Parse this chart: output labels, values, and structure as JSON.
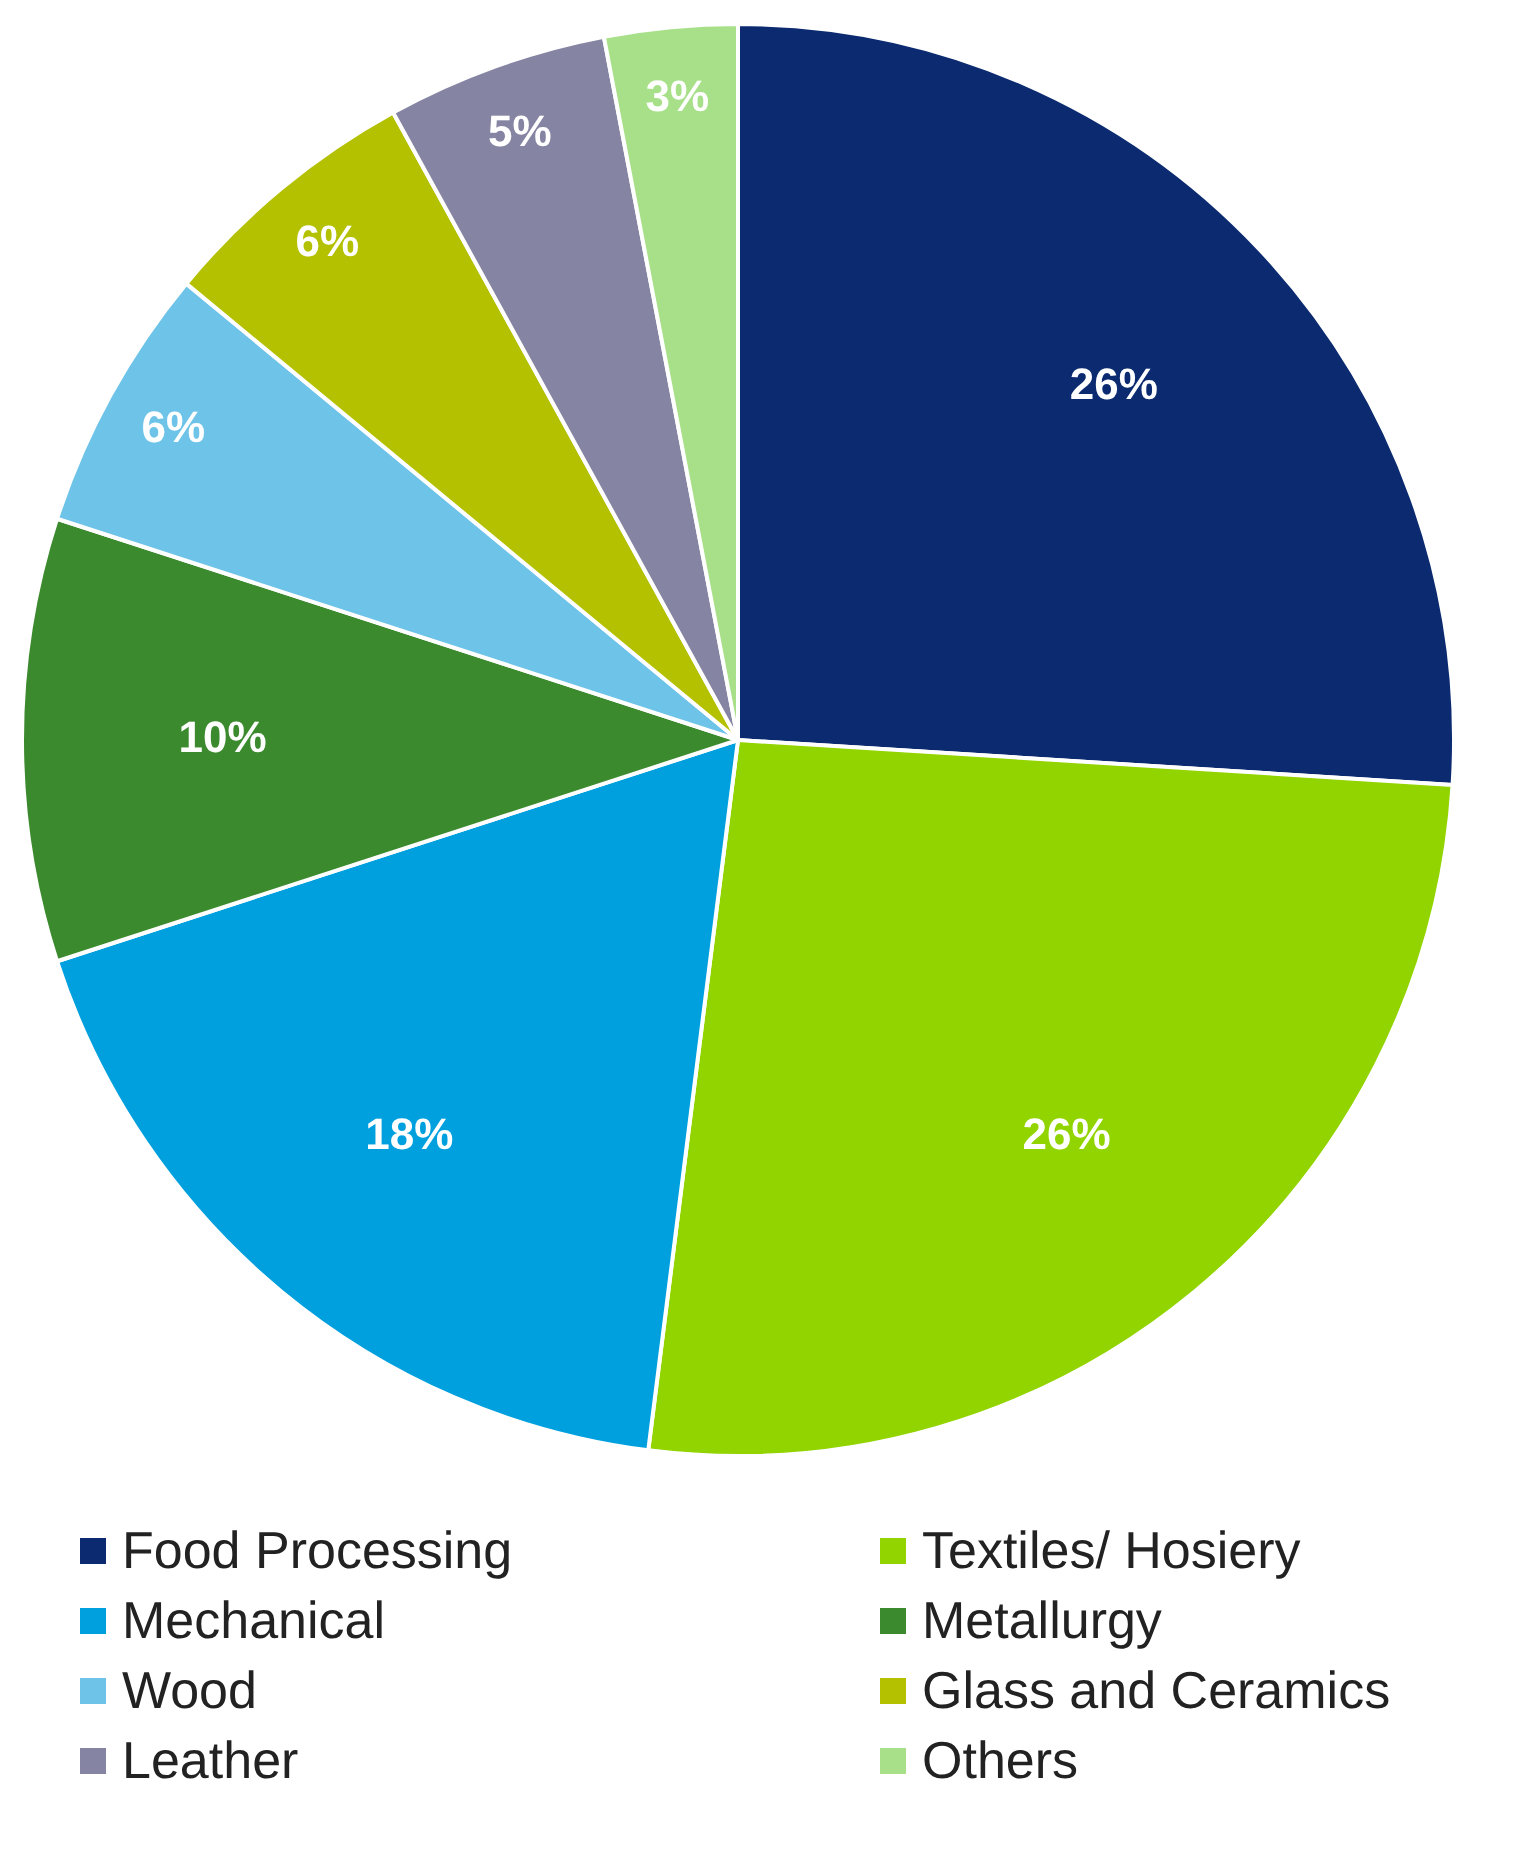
{
  "chart_data": {
    "type": "pie",
    "categories": [
      "Food Processing",
      "Textiles/ Hosiery",
      "Mechanical",
      "Metallurgy",
      "Wood",
      "Glass and Ceramics",
      "Leather",
      "Others"
    ],
    "values": [
      26,
      26,
      18,
      10,
      6,
      6,
      5,
      3
    ],
    "colors": [
      "#0b2a6f",
      "#92d400",
      "#00a0df",
      "#3c8a2e",
      "#6ec3e8",
      "#b3c100",
      "#8585a3",
      "#a8e08a"
    ],
    "value_labels": [
      "26%",
      "26%",
      "18%",
      "10%",
      "6%",
      "6%",
      "5%",
      "3%"
    ],
    "legend": "bottom"
  }
}
